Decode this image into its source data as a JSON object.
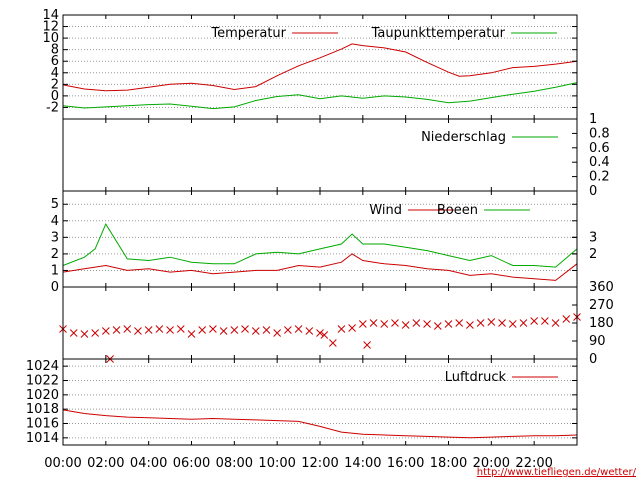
{
  "credit_link": "http://www.tiefliegen.de/wetter/",
  "colors": {
    "red": "#cc0000",
    "green": "#00aa00",
    "grid": "#999999"
  },
  "time_axis": {
    "start_hour": 0,
    "end_hour": 24,
    "tick_labels": [
      "00:00",
      "02:00",
      "04:00",
      "06:00",
      "08:00",
      "10:00",
      "12:00",
      "14:00",
      "16:00",
      "18:00",
      "20:00",
      "22:00"
    ]
  },
  "chart_data": [
    {
      "type": "line",
      "ylim": [
        -4,
        14
      ],
      "yticks": [
        "-2",
        "0",
        "2",
        "4",
        "6",
        "8",
        "10",
        "12",
        "14"
      ],
      "series": [
        {
          "name": "Temperatur",
          "color": "#cc0000",
          "x": [
            0,
            1,
            2,
            3,
            4,
            5,
            6,
            7,
            8,
            9,
            10,
            11,
            12,
            13,
            13.5,
            14,
            15,
            16,
            17,
            18,
            18.5,
            19,
            20,
            21,
            22,
            23,
            24
          ],
          "values": [
            1.9,
            1.2,
            0.9,
            1.0,
            1.5,
            2.0,
            2.2,
            1.8,
            1.1,
            1.6,
            3.5,
            5.2,
            6.6,
            8.1,
            9.0,
            8.7,
            8.3,
            7.6,
            5.8,
            4.1,
            3.4,
            3.5,
            4.0,
            4.9,
            5.1,
            5.5,
            6.0
          ]
        },
        {
          "name": "Taupunkttemperatur",
          "color": "#00aa00",
          "x": [
            0,
            1,
            2,
            3,
            4,
            5,
            6,
            7,
            8,
            9,
            10,
            11,
            12,
            13,
            14,
            15,
            16,
            17,
            18,
            19,
            20,
            21,
            22,
            23,
            24
          ],
          "values": [
            -1.7,
            -2.1,
            -1.9,
            -1.7,
            -1.5,
            -1.4,
            -1.8,
            -2.2,
            -1.9,
            -0.8,
            -0.1,
            0.2,
            -0.5,
            0.0,
            -0.4,
            0.0,
            -0.2,
            -0.6,
            -1.2,
            -0.9,
            -0.3,
            0.3,
            0.8,
            1.5,
            2.3
          ]
        }
      ]
    },
    {
      "type": "line",
      "ylim": [
        0,
        1
      ],
      "yticks_right": [
        "0",
        "0.2",
        "0.4",
        "0.6",
        "0.8",
        "1"
      ],
      "series": [
        {
          "name": "Niederschlag",
          "color": "#00aa00",
          "x": [
            0,
            24
          ],
          "values": [
            0,
            0
          ]
        }
      ]
    },
    {
      "type": "line",
      "ylim": [
        0,
        5.8
      ],
      "yticks": [
        "0",
        "1",
        "2",
        "3",
        "4",
        "5"
      ],
      "yticks_right": [
        "2",
        "3"
      ],
      "series": [
        {
          "name": "Wind",
          "color": "#cc0000",
          "x": [
            0,
            1,
            2,
            3,
            4,
            5,
            6,
            7,
            8,
            9,
            10,
            11,
            12,
            13,
            13.5,
            14,
            15,
            16,
            17,
            18,
            19,
            20,
            21,
            22,
            23,
            24
          ],
          "values": [
            0.9,
            1.1,
            1.3,
            1.0,
            1.1,
            0.9,
            1.0,
            0.8,
            0.9,
            1.0,
            1.0,
            1.3,
            1.2,
            1.5,
            2.0,
            1.6,
            1.4,
            1.3,
            1.1,
            1.0,
            0.7,
            0.8,
            0.6,
            0.5,
            0.4,
            1.4
          ]
        },
        {
          "name": "Boeen",
          "color": "#00aa00",
          "x": [
            0,
            1,
            1.5,
            2,
            3,
            4,
            5,
            6,
            7,
            8,
            9,
            10,
            11,
            12,
            13,
            13.5,
            14,
            15,
            16,
            17,
            18,
            19,
            20,
            21,
            22,
            23,
            24
          ],
          "values": [
            1.3,
            1.8,
            2.3,
            3.8,
            1.7,
            1.6,
            1.8,
            1.5,
            1.4,
            1.4,
            2.0,
            2.1,
            2.0,
            2.3,
            2.6,
            3.2,
            2.6,
            2.6,
            2.4,
            2.2,
            1.9,
            1.6,
            1.9,
            1.3,
            1.3,
            1.2,
            2.3
          ]
        }
      ]
    },
    {
      "type": "scatter",
      "ylim": [
        0,
        360
      ],
      "yticks_right": [
        "0",
        "90",
        "180",
        "270",
        "360"
      ],
      "series": [
        {
          "name": "",
          "color": "#cc0000",
          "x": [
            0,
            0.5,
            1,
            1.5,
            2,
            2.2,
            2.5,
            3,
            3.5,
            4,
            4.5,
            5,
            5.5,
            6,
            6.5,
            7,
            7.5,
            8,
            8.5,
            9,
            9.5,
            10,
            10.5,
            11,
            11.5,
            12,
            12.2,
            12.6,
            13,
            13.5,
            14,
            14.2,
            14.5,
            15,
            15.5,
            16,
            16.5,
            17,
            17.5,
            18,
            18.5,
            19,
            19.5,
            20,
            20.5,
            21,
            21.5,
            22,
            22.5,
            23,
            23.5,
            24
          ],
          "values": [
            150,
            130,
            125,
            130,
            140,
            0,
            145,
            150,
            140,
            145,
            150,
            145,
            150,
            125,
            145,
            150,
            140,
            145,
            150,
            140,
            145,
            130,
            145,
            150,
            140,
            130,
            120,
            80,
            150,
            155,
            175,
            70,
            180,
            175,
            180,
            170,
            180,
            175,
            165,
            175,
            180,
            170,
            180,
            185,
            180,
            175,
            180,
            190,
            190,
            180,
            200,
            210
          ]
        }
      ]
    },
    {
      "type": "line",
      "ylim": [
        1013,
        1025
      ],
      "yticks": [
        "1014",
        "1016",
        "1018",
        "1020",
        "1022",
        "1024"
      ],
      "series": [
        {
          "name": "Luftdruck",
          "color": "#cc0000",
          "x": [
            0,
            1,
            2,
            3,
            4,
            5,
            6,
            7,
            8,
            9,
            10,
            11,
            12,
            13,
            14,
            15,
            16,
            17,
            18,
            19,
            20,
            21,
            22,
            23,
            24
          ],
          "values": [
            1017.9,
            1017.4,
            1017.1,
            1016.9,
            1016.8,
            1016.7,
            1016.6,
            1016.7,
            1016.6,
            1016.5,
            1016.4,
            1016.3,
            1015.6,
            1014.8,
            1014.5,
            1014.4,
            1014.3,
            1014.2,
            1014.1,
            1014.0,
            1014.1,
            1014.2,
            1014.3,
            1014.3,
            1014.4
          ]
        }
      ]
    }
  ]
}
